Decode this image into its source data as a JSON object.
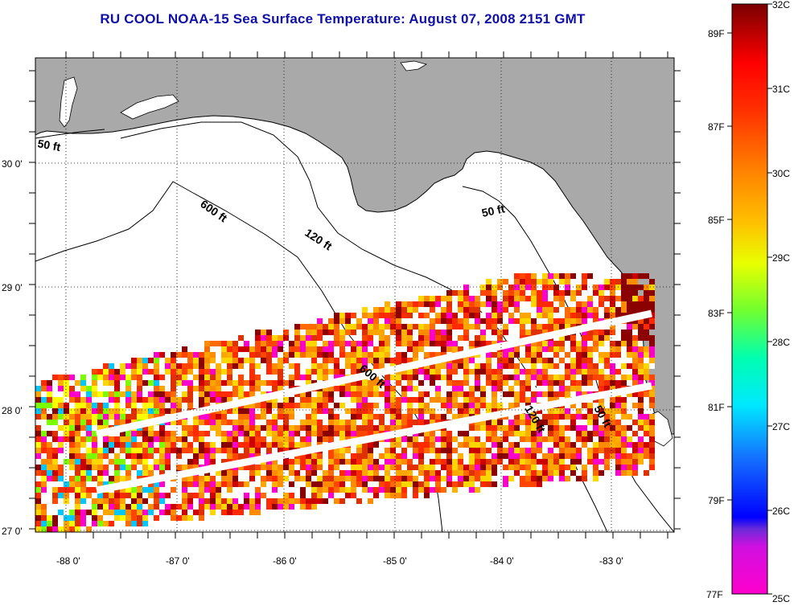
{
  "title": "RU COOL  NOAA-15  Sea Surface Temperature:  August 07, 2008 2151 GMT",
  "map": {
    "lon_labels": [
      "-88 0'",
      "-87 0'",
      "-86 0'",
      "-85 0'",
      "-84 0'",
      "-83 0'"
    ],
    "lat_labels": [
      "30 0'",
      "29 0'",
      "28 0'",
      "27 0'"
    ],
    "contour_labels": {
      "c50_west": "50 ft",
      "c600_north": "600 ft",
      "c120_north": "120 ft",
      "c50_east": "50 ft",
      "c600_south": "600 ft",
      "c120_south": "120 ft",
      "c50_south": "50 ft"
    },
    "colors": {
      "land": "#a9a9a9",
      "water": "#ffffff",
      "coast": "#000000",
      "grid": "#000000"
    }
  },
  "colorbar": {
    "fahrenheit_labels": [
      "89F",
      "87F",
      "85F",
      "83F",
      "81F",
      "79F",
      "77F"
    ],
    "celsius_labels": [
      "32C",
      "31C",
      "30C",
      "29C",
      "28C",
      "27C",
      "26C",
      "25C"
    ],
    "gradient": [
      "#ff00cc",
      "#8a2be2",
      "#0000ff",
      "#00c8ff",
      "#00ffcc",
      "#7cfc00",
      "#ffff00",
      "#ffa500",
      "#ff4500",
      "#ff0000",
      "#800000"
    ]
  }
}
